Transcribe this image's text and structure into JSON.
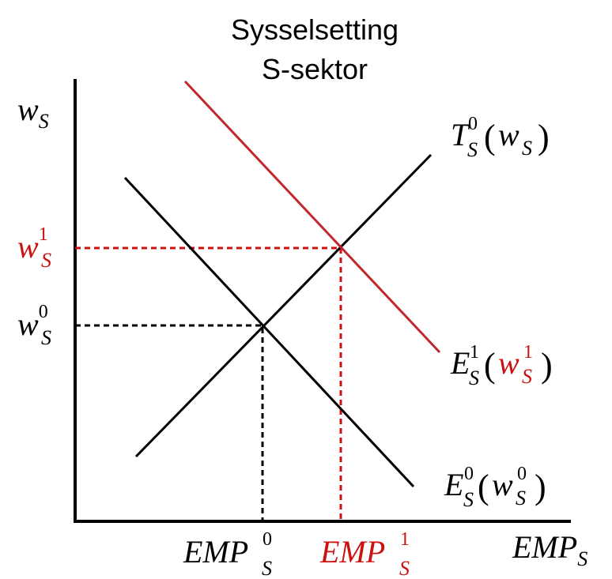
{
  "title": {
    "line1": "Sysselsetting",
    "line2": "S-sektor"
  },
  "colors": {
    "black": "#000000",
    "red": "#cc1111",
    "curve_red": "#c0282d"
  },
  "axes": {
    "y_label": {
      "base": "w",
      "sub": "S"
    },
    "x_label": {
      "base": "EMP",
      "sub": "S"
    }
  },
  "y_ticks": {
    "w1": {
      "base": "w",
      "sub": "S",
      "sup": "1"
    },
    "w0": {
      "base": "w",
      "sub": "S",
      "sup": "0"
    }
  },
  "x_ticks": {
    "emp0": {
      "base": "EMP",
      "sub": "S",
      "sup": "0"
    },
    "emp1": {
      "base": "EMP",
      "sub": "S",
      "sup": "1"
    }
  },
  "curves": {
    "supply": {
      "base": "T",
      "sub": "S",
      "sup": "0",
      "open": "(",
      "arg_base": "w",
      "arg_sub": "S",
      "close": ")"
    },
    "demand_new": {
      "base": "E",
      "sub": "S",
      "sup": "1",
      "open": "(",
      "arg_base": "w",
      "arg_sub": "S",
      "arg_sup": "1",
      "close": ")"
    },
    "demand_old": {
      "base": "E",
      "sub": "S",
      "sup": "0",
      "open": "(",
      "arg_base": "w",
      "arg_sub": "S",
      "arg_sup": "0",
      "close": ")"
    }
  }
}
